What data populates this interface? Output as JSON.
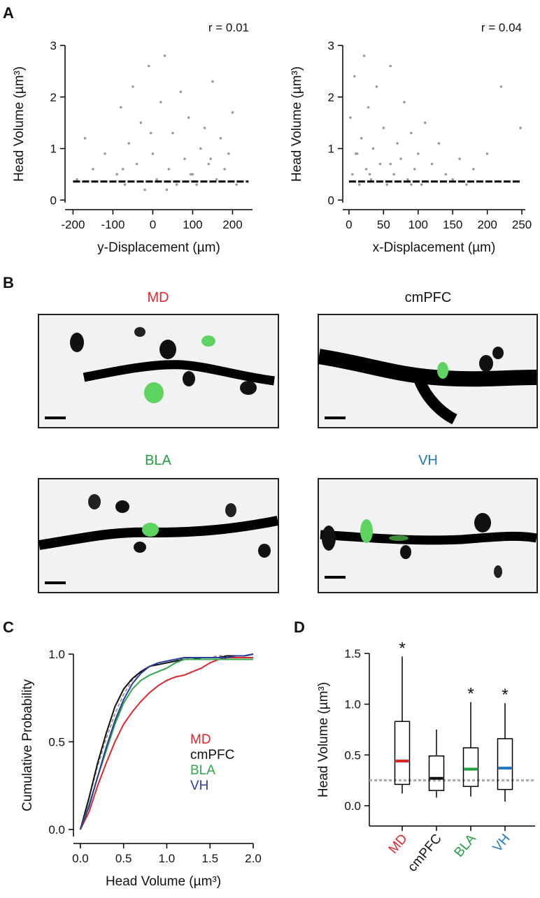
{
  "panels": [
    "A",
    "B",
    "C",
    "D"
  ],
  "images": {
    "labels": [
      "MD",
      "cmPFC",
      "BLA",
      "VH"
    ],
    "colors": [
      "#e0262b",
      "#111111",
      "#20a040",
      "#1f78c1"
    ]
  },
  "chart_data": [
    {
      "type": "scatter",
      "annotation": "r = 0.01",
      "xlabel": "y-Displacement (µm)",
      "ylabel": "Head Volume (µm³)",
      "color": "#999999",
      "xlim": [
        -220,
        250
      ],
      "xticks": [
        -200,
        -100,
        0,
        100,
        200
      ],
      "ylim": [
        -0.05,
        3
      ],
      "yticks": [
        0,
        1,
        2,
        3
      ],
      "x": [
        -190,
        -170,
        -150,
        -120,
        -90,
        -80,
        -70,
        -60,
        -50,
        -40,
        -30,
        -20,
        -10,
        0,
        10,
        20,
        30,
        40,
        50,
        60,
        70,
        80,
        90,
        100,
        110,
        120,
        130,
        140,
        150,
        160,
        170,
        180,
        190,
        200,
        210,
        -75,
        -5,
        35,
        95,
        145
      ],
      "values": [
        0.4,
        1.2,
        0.6,
        0.9,
        0.5,
        1.8,
        0.3,
        1.1,
        2.2,
        0.7,
        1.5,
        0.2,
        2.6,
        0.9,
        0.4,
        1.9,
        2.8,
        0.6,
        1.3,
        0.3,
        2.1,
        0.8,
        1.6,
        0.5,
        0.3,
        1.0,
        1.4,
        0.7,
        2.3,
        0.4,
        1.2,
        0.6,
        0.9,
        1.7,
        0.3,
        0.6,
        1.3,
        0.2,
        0.5,
        0.8
      ],
      "trend": {
        "x": [
          -200,
          240
        ],
        "values": [
          0.36,
          0.36
        ],
        "color": "#000000"
      }
    },
    {
      "type": "scatter",
      "annotation": "r = 0.04",
      "xlabel": "x-Displacement (µm)",
      "ylabel": "Head Volume (µm³)",
      "color": "#999999",
      "xlim": [
        -9,
        255
      ],
      "xticks": [
        0,
        50,
        100,
        150,
        200,
        250
      ],
      "ylim": [
        -0.05,
        3
      ],
      "yticks": [
        0,
        1,
        2,
        3
      ],
      "x": [
        2,
        5,
        8,
        12,
        15,
        18,
        22,
        25,
        28,
        32,
        35,
        40,
        45,
        50,
        55,
        60,
        65,
        70,
        75,
        80,
        85,
        90,
        95,
        100,
        105,
        110,
        120,
        130,
        140,
        150,
        160,
        170,
        180,
        200,
        220,
        248,
        10,
        30,
        60,
        90
      ],
      "values": [
        1.6,
        0.5,
        2.4,
        0.9,
        0.3,
        1.2,
        2.8,
        0.6,
        1.8,
        0.4,
        1.0,
        2.2,
        0.7,
        1.4,
        0.3,
        2.6,
        0.5,
        1.1,
        0.8,
        1.9,
        0.4,
        1.3,
        0.6,
        0.9,
        0.3,
        1.5,
        0.7,
        1.1,
        0.5,
        0.4,
        0.8,
        0.3,
        0.6,
        0.9,
        2.2,
        1.4,
        0.9,
        0.5,
        0.7,
        0.3
      ],
      "trend": {
        "x": [
          0,
          250
        ],
        "values": [
          0.36,
          0.36
        ],
        "color": "#000000"
      }
    },
    {
      "type": "line",
      "xlabel": "Head Volume (µm³)",
      "ylabel": "Cumulative Probability",
      "xlim": [
        -0.08,
        2.0
      ],
      "xticks": [
        {
          "value": 0,
          "label": "0.0"
        },
        {
          "value": 0.5,
          "label": "0.5"
        },
        {
          "value": 1,
          "label": "1.0"
        },
        {
          "value": 1.5,
          "label": "1.5"
        },
        {
          "value": 2,
          "label": "2.0"
        }
      ],
      "ylim": [
        -0.04,
        1.0
      ],
      "yticks": [
        {
          "value": 0,
          "label": "0.0"
        },
        {
          "value": 0.5,
          "label": "0.5"
        },
        {
          "value": 1,
          "label": "1.0"
        }
      ],
      "x": [
        0,
        0.1,
        0.2,
        0.3,
        0.4,
        0.5,
        0.6,
        0.7,
        0.8,
        0.9,
        1.0,
        1.1,
        1.2,
        1.3,
        1.4,
        1.5,
        1.6,
        1.7,
        1.8,
        1.9,
        2.0
      ],
      "series": [
        {
          "name": "MD",
          "color": "#e0262b",
          "values": [
            0,
            0.1,
            0.25,
            0.38,
            0.5,
            0.6,
            0.67,
            0.73,
            0.78,
            0.82,
            0.85,
            0.87,
            0.88,
            0.9,
            0.92,
            0.95,
            0.97,
            0.98,
            0.98,
            0.98,
            0.98
          ]
        },
        {
          "name": "cmPFC",
          "color": "#111111",
          "values": [
            0,
            0.18,
            0.38,
            0.55,
            0.7,
            0.8,
            0.86,
            0.9,
            0.93,
            0.94,
            0.95,
            0.96,
            0.97,
            0.97,
            0.98,
            0.98,
            0.98,
            0.99,
            0.99,
            0.99,
            1.0
          ]
        },
        {
          "name": "BLA",
          "color": "#2ea84a",
          "values": [
            0,
            0.14,
            0.3,
            0.45,
            0.6,
            0.72,
            0.8,
            0.85,
            0.88,
            0.9,
            0.92,
            0.95,
            0.97,
            0.97,
            0.97,
            0.97,
            0.97,
            0.97,
            0.97,
            0.97,
            0.97
          ]
        },
        {
          "name": "VH",
          "color": "#2a3c9c",
          "values": [
            0,
            0.13,
            0.3,
            0.47,
            0.62,
            0.74,
            0.83,
            0.89,
            0.93,
            0.95,
            0.96,
            0.97,
            0.98,
            0.98,
            0.98,
            0.98,
            0.98,
            0.98,
            0.99,
            0.99,
            1.0
          ]
        }
      ],
      "reference": {
        "color": "#999999",
        "values": [
          0,
          0.18,
          0.36,
          0.52,
          0.66,
          0.77,
          0.85,
          0.9,
          0.93,
          0.95,
          0.96,
          0.97,
          0.97,
          0.98,
          0.98,
          0.98,
          0.99,
          0.99,
          0.99,
          0.99,
          1.0
        ]
      }
    },
    {
      "type": "box",
      "ylabel": "Head Volume (µm³)",
      "ylim": [
        -0.2,
        1.5
      ],
      "yticks": [
        {
          "value": 0,
          "label": "0.0"
        },
        {
          "value": 0.5,
          "label": "0.5"
        },
        {
          "value": 1,
          "label": "1.0"
        },
        {
          "value": 1.5,
          "label": "1.5"
        }
      ],
      "categories": [
        "MD",
        "cmPFC",
        "BLA",
        "VH"
      ],
      "colors": [
        "#e0262b",
        "#111111",
        "#20a040",
        "#1f78c1"
      ],
      "low": [
        0.12,
        0.08,
        0.09,
        0.04
      ],
      "q1": [
        0.21,
        0.15,
        0.19,
        0.16
      ],
      "median": [
        0.44,
        0.27,
        0.36,
        0.37
      ],
      "q3": [
        0.83,
        0.49,
        0.57,
        0.66
      ],
      "high": [
        1.47,
        0.75,
        1.02,
        1.01
      ],
      "stars": [
        "*",
        null,
        "*",
        "*"
      ],
      "reference": {
        "value": 0.25,
        "color": "#aaaaaa"
      }
    }
  ]
}
